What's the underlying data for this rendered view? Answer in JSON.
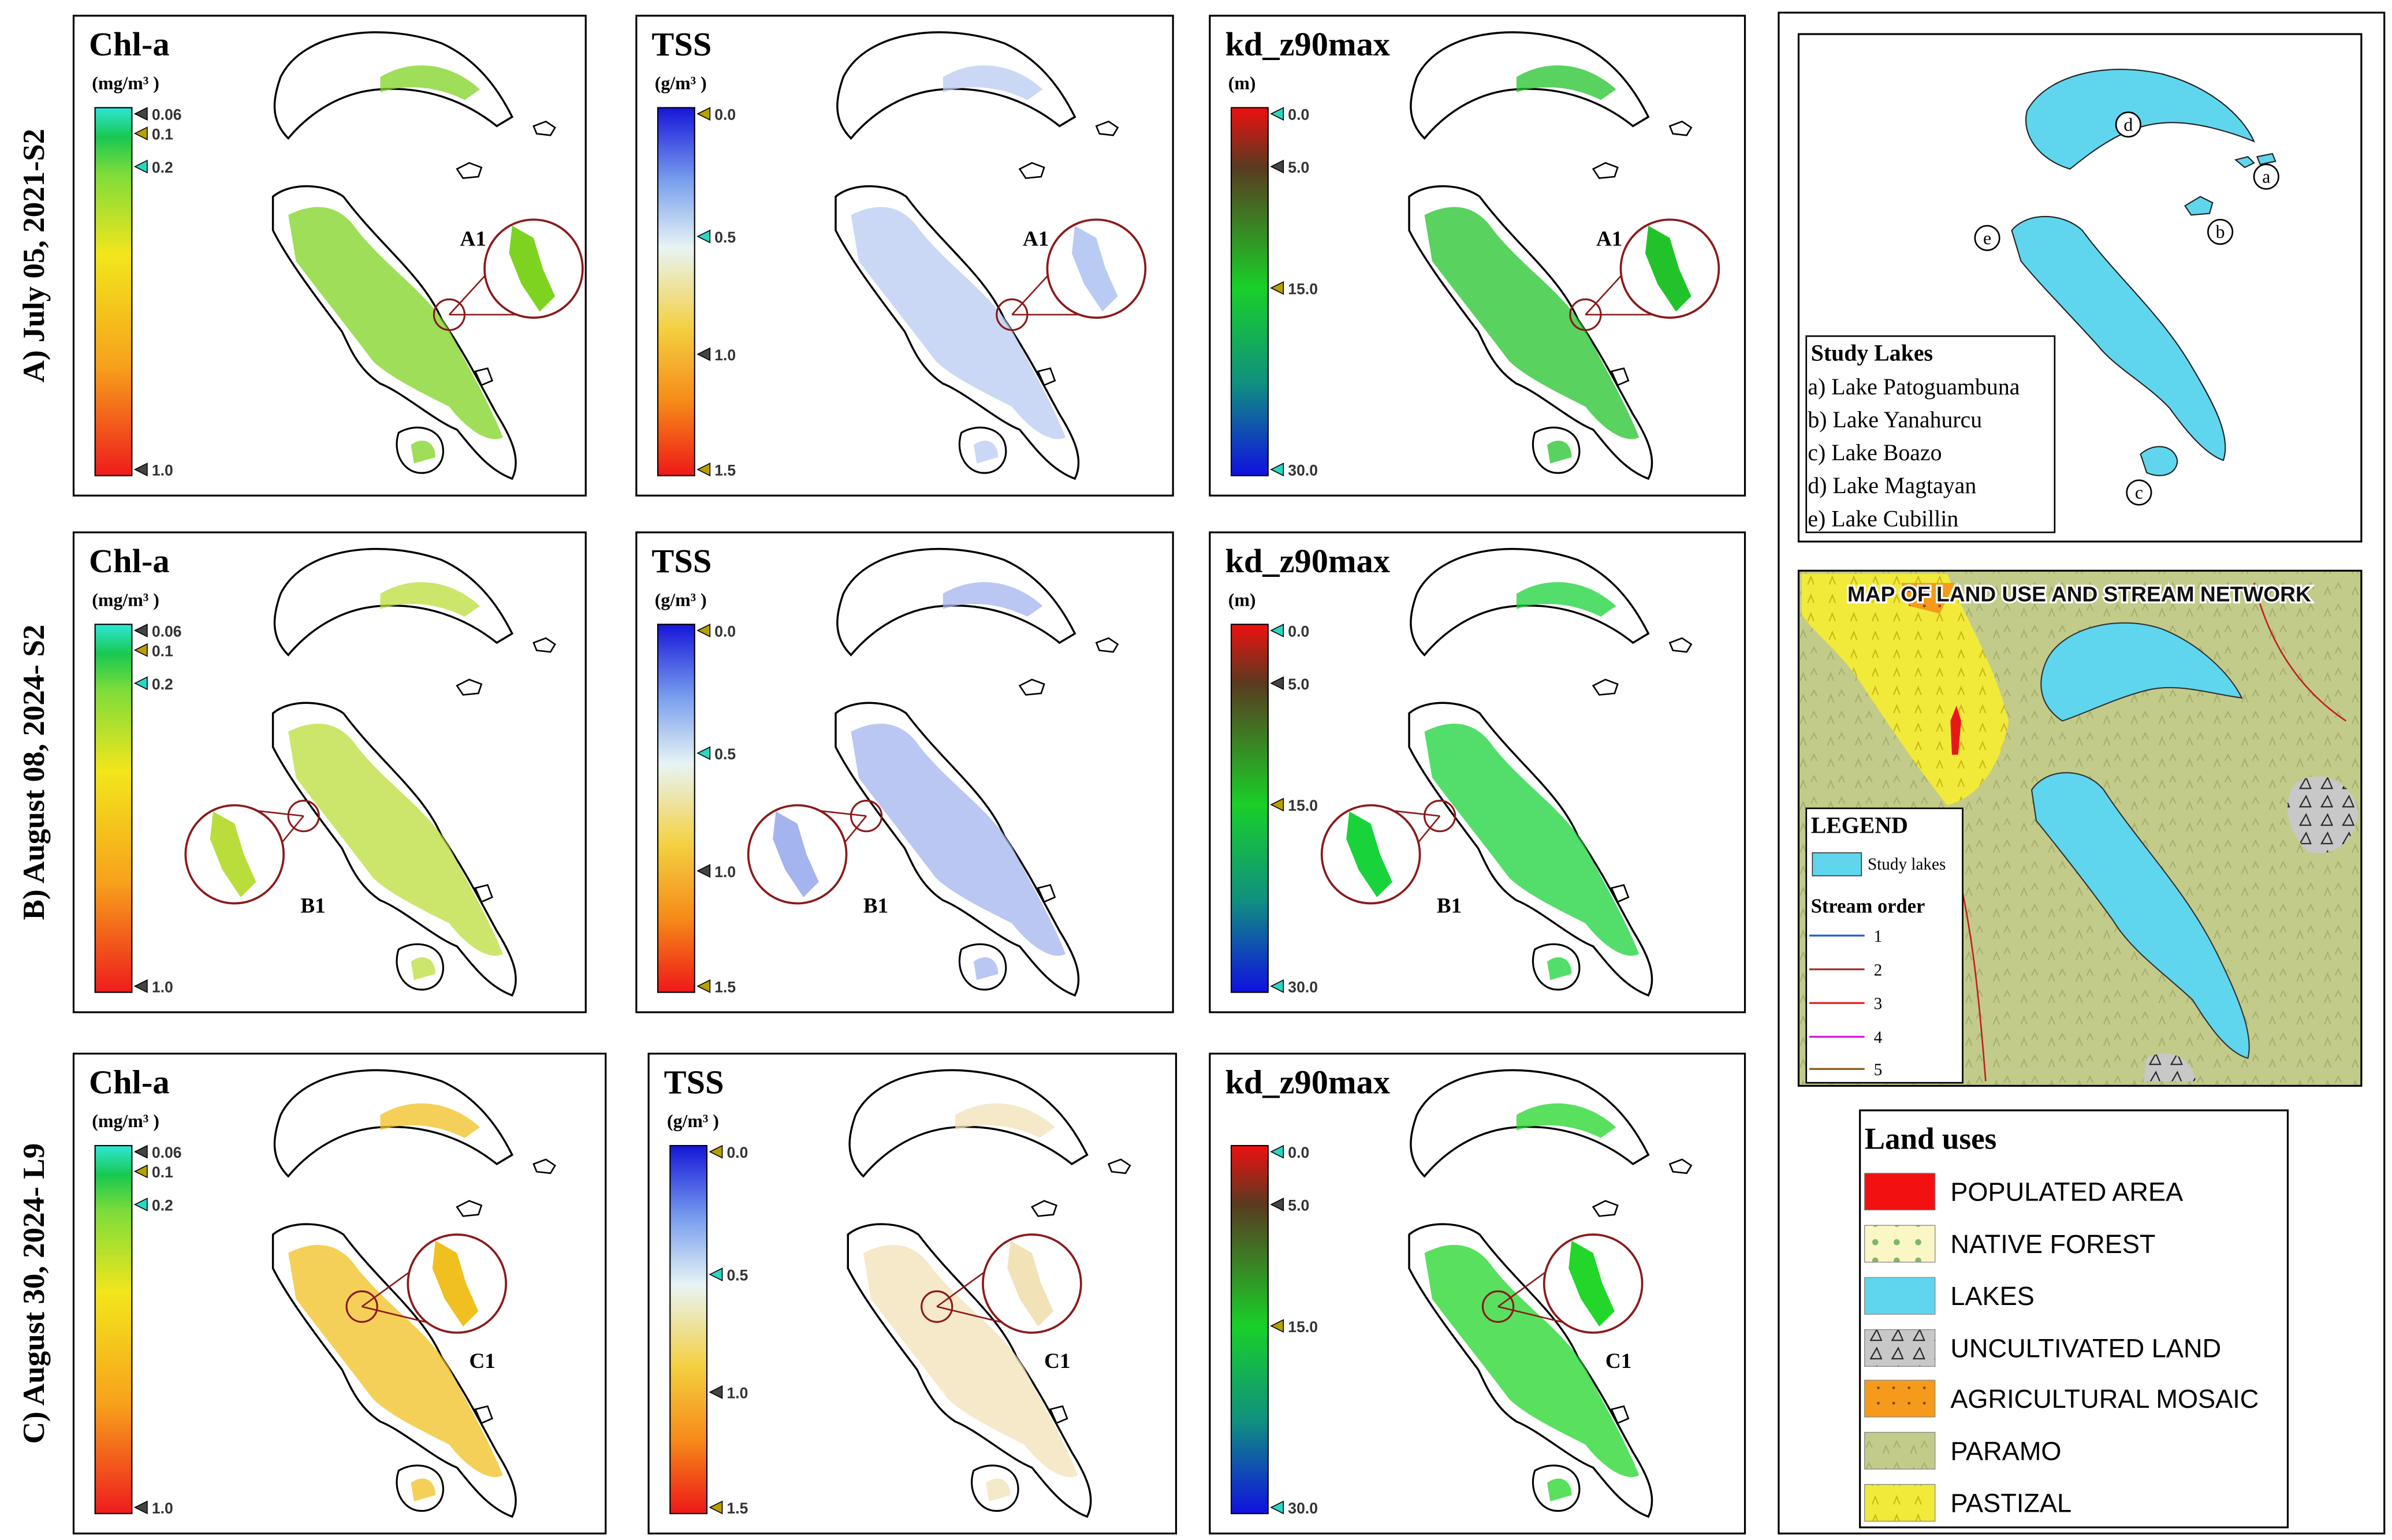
{
  "rows": [
    {
      "label": "A) July 05, 2021-S2",
      "panels": [
        {
          "title": "Chl-a",
          "unit": "(mg/m³ )",
          "ticks": [
            "0.06",
            "0.1",
            "0.2",
            "1.0"
          ],
          "zoom_label": "A1"
        },
        {
          "title": "TSS",
          "unit": "(g/m³ )",
          "ticks": [
            "0.0",
            "0.5",
            "1.0",
            "1.5"
          ],
          "zoom_label": "A1"
        },
        {
          "title": "kd_z90max",
          "unit": "(m)",
          "ticks": [
            "0.0",
            "5.0",
            "15.0",
            "30.0"
          ],
          "zoom_label": "A1"
        }
      ]
    },
    {
      "label": "B) August 08, 2024- S2",
      "panels": [
        {
          "title": "Chl-a",
          "unit": "(mg/m³ )",
          "ticks": [
            "0.06",
            "0.1",
            "0.2",
            "1.0"
          ],
          "zoom_label": "B1"
        },
        {
          "title": "TSS",
          "unit": "(g/m³ )",
          "ticks": [
            "0.0",
            "0.5",
            "1.0",
            "1.5"
          ],
          "zoom_label": "B1"
        },
        {
          "title": "kd_z90max",
          "unit": "(m)",
          "ticks": [
            "0.0",
            "5.0",
            "15.0",
            "30.0"
          ],
          "zoom_label": "B1"
        }
      ]
    },
    {
      "label": "C) August 30, 2024- L9",
      "panels": [
        {
          "title": "Chl-a",
          "unit": "(mg/m³ )",
          "ticks": [
            "0.06",
            "0.1",
            "0.2",
            "1.0"
          ],
          "zoom_label": "C1"
        },
        {
          "title": "TSS",
          "unit": "(g/m³ )",
          "ticks": [
            "0.0",
            "0.5",
            "1.0",
            "1.5"
          ],
          "zoom_label": "C1"
        },
        {
          "title": "kd_z90max",
          "ticks": [
            "0.0",
            "5.0",
            "15.0",
            "30.0"
          ],
          "zoom_label": "C1"
        }
      ]
    }
  ],
  "study_lakes": {
    "title": "Study Lakes",
    "items": [
      "a) Lake Patoguambuna",
      "b) Lake Yanahurcu",
      "c) Lake Boazo",
      "d) Lake Magtayan",
      "e) Lake Cubillin"
    ],
    "map_labels": [
      "a",
      "b",
      "c",
      "d",
      "e"
    ]
  },
  "land_use_map": {
    "title": "MAP OF LAND USE AND STREAM NETWORK",
    "legend_title": "LEGEND",
    "lakes_label": "Study lakes",
    "stream_title": "Stream order",
    "stream_orders": [
      "1",
      "2",
      "3",
      "4",
      "5"
    ]
  },
  "land_uses": {
    "title": "Land uses",
    "items": [
      "POPULATED AREA",
      "NATIVE FOREST",
      "LAKES",
      "UNCULTIVATED LAND",
      "AGRICULTURAL MOSAIC",
      "PARAMO",
      "PASTIZAL"
    ]
  }
}
